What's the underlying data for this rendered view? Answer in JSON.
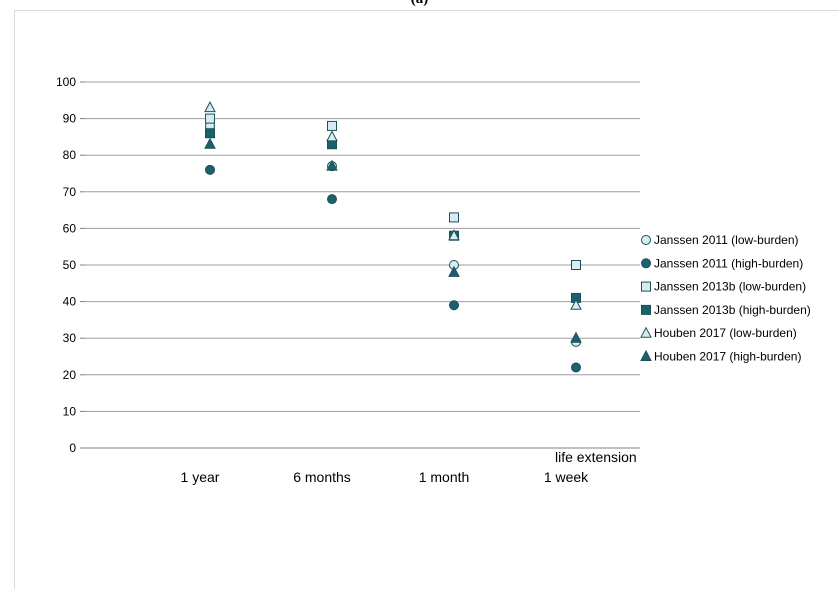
{
  "panel_label": "(a)",
  "colors": {
    "dark": "#1a6170",
    "light": "#d6ecf3",
    "stroke": "#1f4f58",
    "grid": "#9e9e9e"
  },
  "chart_data": {
    "type": "scatter",
    "title": "",
    "xlabel": "life extension",
    "ylabel": "",
    "categories": [
      "1 year",
      "6 months",
      "1 month",
      "1 week"
    ],
    "ylim": [
      0,
      100
    ],
    "yticks": [
      0,
      10,
      20,
      30,
      40,
      50,
      60,
      70,
      80,
      90,
      100
    ],
    "grid": true,
    "legend": "right",
    "series": [
      {
        "name": "Janssen 2011 (low-burden)",
        "marker": "circle",
        "fill": "light",
        "values": [
          88,
          77,
          50,
          29
        ]
      },
      {
        "name": "Janssen 2011 (high-burden)",
        "marker": "circle",
        "fill": "dark",
        "values": [
          76,
          68,
          39,
          22
        ]
      },
      {
        "name": "Janssen 2013b (low-burden)",
        "marker": "square",
        "fill": "light",
        "values": [
          90,
          88,
          63,
          50
        ]
      },
      {
        "name": "Janssen 2013b (high-burden)",
        "marker": "square",
        "fill": "dark",
        "values": [
          86,
          83,
          58,
          41
        ]
      },
      {
        "name": "Houben 2017 (low-burden)",
        "marker": "triangle",
        "fill": "light",
        "values": [
          93,
          85,
          58,
          39
        ]
      },
      {
        "name": "Houben 2017 (high-burden)",
        "marker": "triangle",
        "fill": "dark",
        "values": [
          83,
          77,
          48,
          30
        ]
      }
    ]
  }
}
